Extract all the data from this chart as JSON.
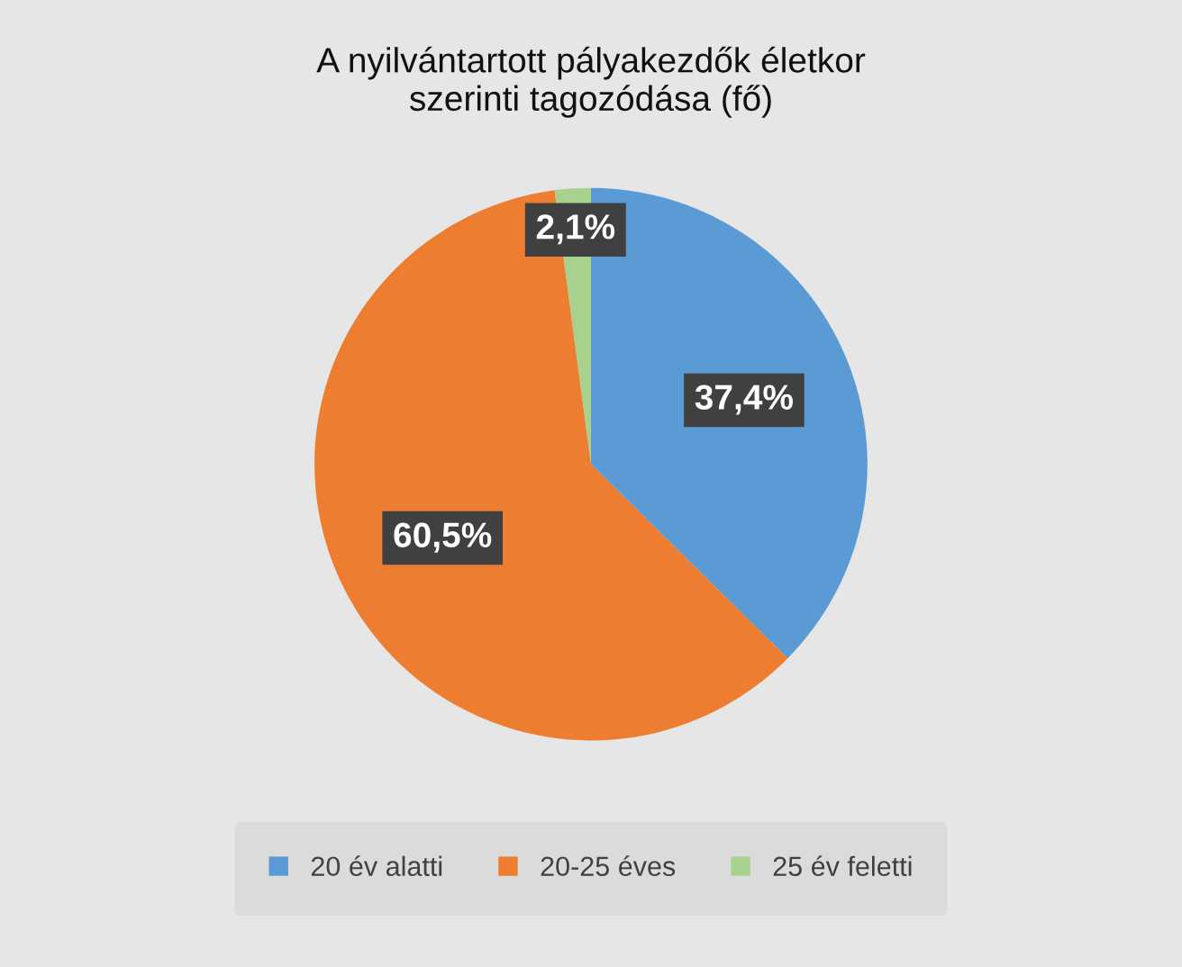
{
  "chart_data": {
    "type": "pie",
    "title": "A nyilvántartott pályakezdők életkor\nszerinti tagozódása (fő)",
    "categories": [
      "20 év alatti",
      "20-25 éves",
      "25 év feletti"
    ],
    "values": [
      37.4,
      60.5,
      2.1
    ],
    "colors": [
      "#5b9bd5",
      "#ed7d31",
      "#a9d18e"
    ],
    "value_labels": [
      "37,4%",
      "60,5%",
      "2,1%"
    ],
    "legend": "bottom"
  }
}
